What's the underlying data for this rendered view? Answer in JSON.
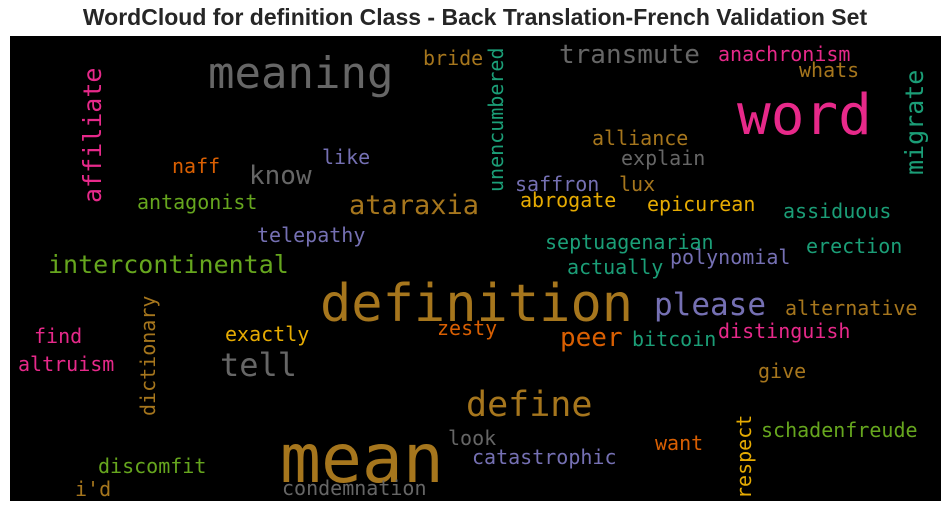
{
  "chart_data": {
    "type": "wordcloud",
    "title": "WordCloud for definition Class - Back Translation-French Validation Set",
    "background": "#000000",
    "words": [
      {
        "text": "definition",
        "color": "#a6761d",
        "orientation": "horizontal"
      },
      {
        "text": "mean",
        "color": "#a6761d",
        "orientation": "horizontal"
      },
      {
        "text": "word",
        "color": "#e7298a",
        "orientation": "horizontal"
      },
      {
        "text": "meaning",
        "color": "#666666",
        "orientation": "horizontal"
      },
      {
        "text": "define",
        "color": "#a6761d",
        "orientation": "horizontal"
      },
      {
        "text": "please",
        "color": "#7570b3",
        "orientation": "horizontal"
      },
      {
        "text": "tell",
        "color": "#666666",
        "orientation": "horizontal"
      },
      {
        "text": "intercontinental",
        "color": "#66a61e",
        "orientation": "horizontal"
      },
      {
        "text": "transmute",
        "color": "#666666",
        "orientation": "horizontal"
      },
      {
        "text": "ataraxia",
        "color": "#a6761d",
        "orientation": "horizontal"
      },
      {
        "text": "affiliate",
        "color": "#e7298a",
        "orientation": "vertical"
      },
      {
        "text": "migrate",
        "color": "#1b9e77",
        "orientation": "vertical"
      },
      {
        "text": "know",
        "color": "#666666",
        "orientation": "horizontal"
      },
      {
        "text": "peer",
        "color": "#d95f02",
        "orientation": "horizontal"
      },
      {
        "text": "unencumbered",
        "color": "#1b9e77",
        "orientation": "vertical"
      },
      {
        "text": "dictionary",
        "color": "#a6761d",
        "orientation": "vertical"
      },
      {
        "text": "respect",
        "color": "#e6ab02",
        "orientation": "vertical"
      },
      {
        "text": "anachronism",
        "color": "#e7298a",
        "orientation": "horizontal"
      },
      {
        "text": "bride",
        "color": "#a6761d",
        "orientation": "horizontal"
      },
      {
        "text": "whats",
        "color": "#a6761d",
        "orientation": "horizontal"
      },
      {
        "text": "alliance",
        "color": "#a6761d",
        "orientation": "horizontal"
      },
      {
        "text": "explain",
        "color": "#666666",
        "orientation": "horizontal"
      },
      {
        "text": "naff",
        "color": "#d95f02",
        "orientation": "horizontal"
      },
      {
        "text": "like",
        "color": "#7570b3",
        "orientation": "horizontal"
      },
      {
        "text": "saffron",
        "color": "#7570b3",
        "orientation": "horizontal"
      },
      {
        "text": "lux",
        "color": "#a6761d",
        "orientation": "horizontal"
      },
      {
        "text": "antagonist",
        "color": "#66a61e",
        "orientation": "horizontal"
      },
      {
        "text": "abrogate",
        "color": "#e6ab02",
        "orientation": "horizontal"
      },
      {
        "text": "epicurean",
        "color": "#e6ab02",
        "orientation": "horizontal"
      },
      {
        "text": "assiduous",
        "color": "#1b9e77",
        "orientation": "horizontal"
      },
      {
        "text": "telepathy",
        "color": "#7570b3",
        "orientation": "horizontal"
      },
      {
        "text": "septuagenarian",
        "color": "#1b9e77",
        "orientation": "horizontal"
      },
      {
        "text": "erection",
        "color": "#1b9e77",
        "orientation": "horizontal"
      },
      {
        "text": "actually",
        "color": "#1b9e77",
        "orientation": "horizontal"
      },
      {
        "text": "polynomial",
        "color": "#7570b3",
        "orientation": "horizontal"
      },
      {
        "text": "alternative",
        "color": "#a6761d",
        "orientation": "horizontal"
      },
      {
        "text": "find",
        "color": "#e7298a",
        "orientation": "horizontal"
      },
      {
        "text": "exactly",
        "color": "#e6ab02",
        "orientation": "horizontal"
      },
      {
        "text": "zesty",
        "color": "#d95f02",
        "orientation": "horizontal"
      },
      {
        "text": "bitcoin",
        "color": "#1b9e77",
        "orientation": "horizontal"
      },
      {
        "text": "distinguish",
        "color": "#e7298a",
        "orientation": "horizontal"
      },
      {
        "text": "altruism",
        "color": "#e7298a",
        "orientation": "horizontal"
      },
      {
        "text": "give",
        "color": "#a6761d",
        "orientation": "horizontal"
      },
      {
        "text": "look",
        "color": "#666666",
        "orientation": "horizontal"
      },
      {
        "text": "want",
        "color": "#d95f02",
        "orientation": "horizontal"
      },
      {
        "text": "schadenfreude",
        "color": "#66a61e",
        "orientation": "horizontal"
      },
      {
        "text": "catastrophic",
        "color": "#7570b3",
        "orientation": "horizontal"
      },
      {
        "text": "discomfit",
        "color": "#66a61e",
        "orientation": "horizontal"
      },
      {
        "text": "i'd",
        "color": "#a6761d",
        "orientation": "horizontal"
      },
      {
        "text": "condemnation",
        "color": "#666666",
        "orientation": "horizontal"
      }
    ]
  }
}
